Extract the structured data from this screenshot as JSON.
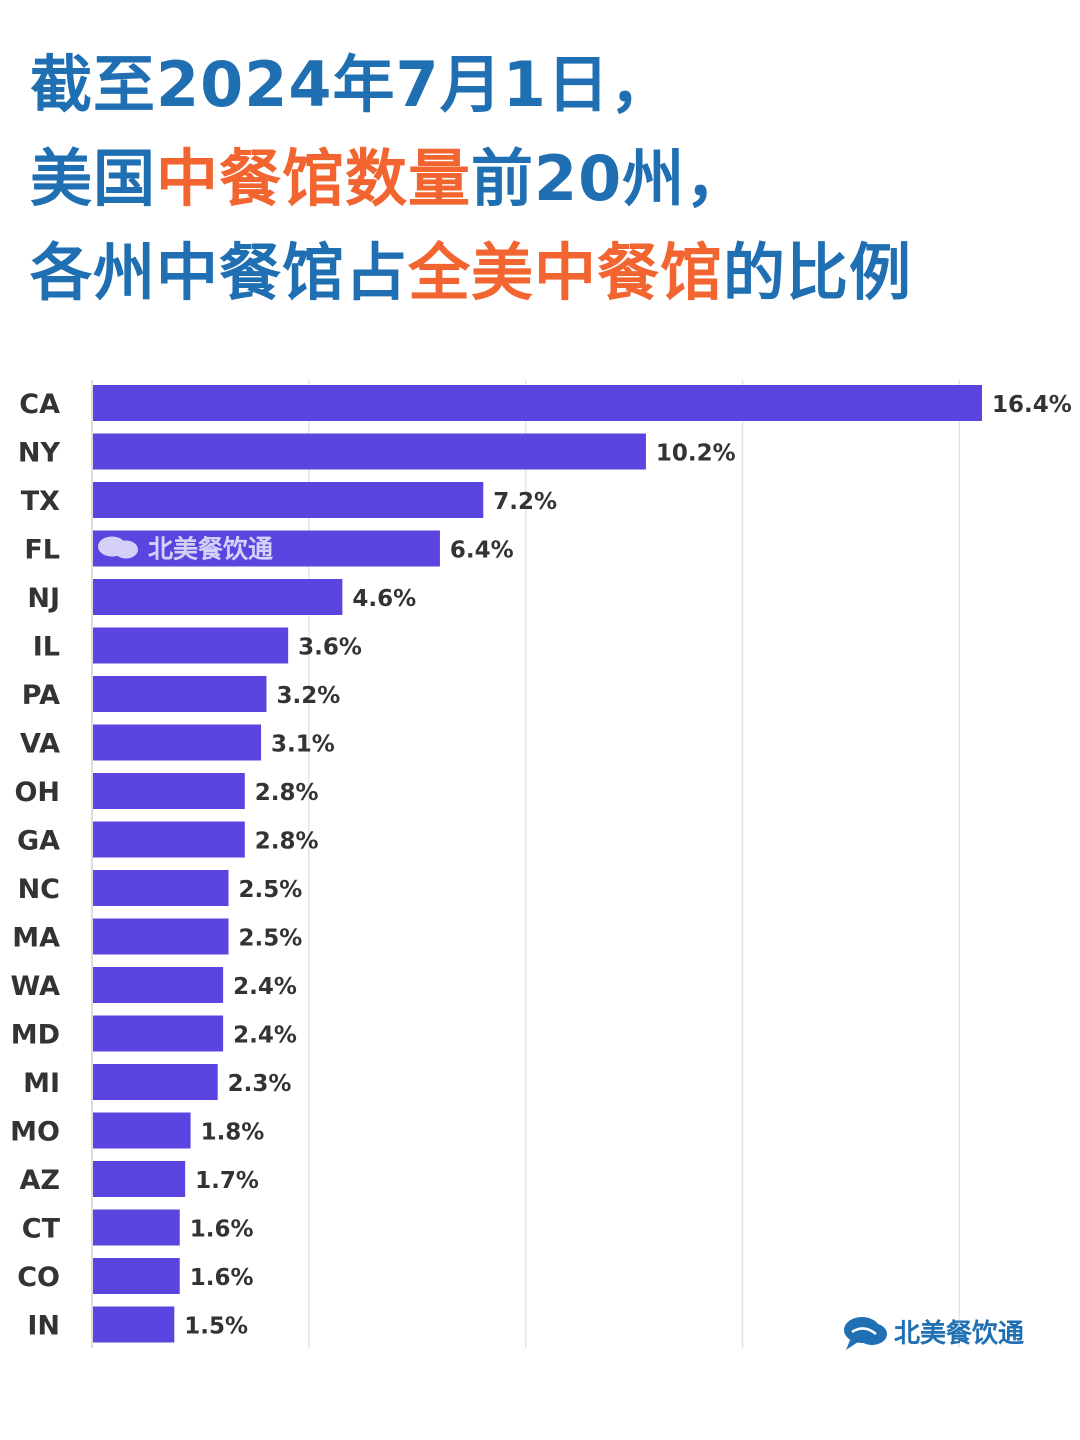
{
  "title": {
    "line1": [
      {
        "text": "截至2024年7月1日，",
        "color": "#1f6fb2"
      }
    ],
    "line2": [
      {
        "text": "美国",
        "color": "#1f6fb2"
      },
      {
        "text": "中餐馆数量",
        "color": "#f26531"
      },
      {
        "text": "前20州，",
        "color": "#1f6fb2"
      }
    ],
    "line3": [
      {
        "text": "各州中餐馆占",
        "color": "#1f6fb2"
      },
      {
        "text": "全美中餐馆",
        "color": "#f26531"
      },
      {
        "text": "的比例",
        "color": "#1f6fb2"
      }
    ]
  },
  "chart_data": {
    "type": "bar",
    "orientation": "horizontal",
    "categories": [
      "CA",
      "NY",
      "TX",
      "FL",
      "NJ",
      "IL",
      "PA",
      "VA",
      "OH",
      "GA",
      "NC",
      "MA",
      "WA",
      "MD",
      "MI",
      "MO",
      "AZ",
      "CT",
      "CO",
      "IN"
    ],
    "values": [
      16.4,
      10.2,
      7.2,
      6.4,
      4.6,
      3.6,
      3.2,
      3.1,
      2.8,
      2.8,
      2.5,
      2.5,
      2.4,
      2.4,
      2.3,
      1.8,
      1.7,
      1.6,
      1.6,
      1.5
    ],
    "value_labels": [
      "16.4%",
      "10.2%",
      "7.2%",
      "6.4%",
      "4.6%",
      "3.6%",
      "3.2%",
      "3.1%",
      "2.8%",
      "2.8%",
      "2.5%",
      "2.5%",
      "2.4%",
      "2.4%",
      "2.3%",
      "1.8%",
      "1.7%",
      "1.6%",
      "1.6%",
      "1.5%"
    ],
    "xlim": [
      0,
      16.4
    ],
    "gridlines_at": [
      4,
      8,
      12,
      16
    ],
    "grid": true,
    "bar_color": "#5a45e0"
  },
  "watermark": {
    "text": "北美餐饮通",
    "color": "#ffffff"
  },
  "logo": {
    "text": "北美餐饮通",
    "color": "#1f6fb2"
  }
}
